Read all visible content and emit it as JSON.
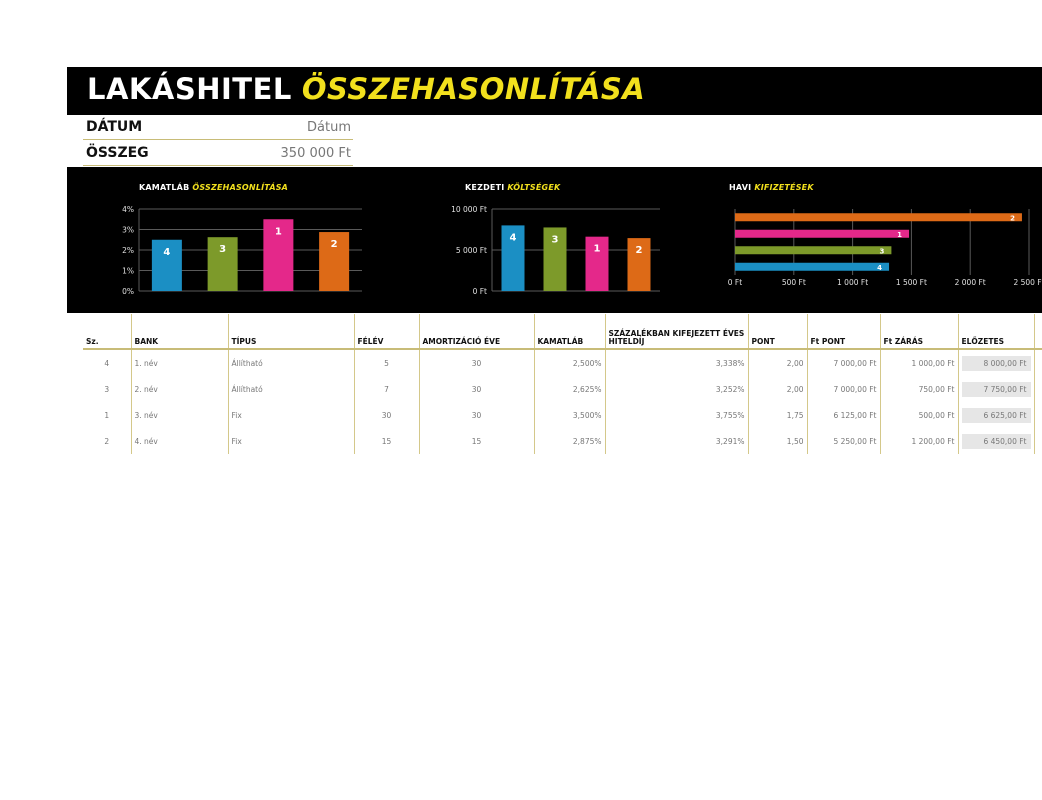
{
  "title": {
    "part1": "LAKÁSHITEL",
    "part2": "ÖSSZEHASONLÍTÁSA"
  },
  "info": {
    "date_label": "DÁTUM",
    "date_value": "Dátum",
    "amount_label": "ÖSSZEG",
    "amount_value": "350 000 Ft"
  },
  "colors": {
    "blue": "#1b8fc4",
    "green": "#7d9a2a",
    "pink": "#e4288a",
    "orange": "#dd6a17",
    "accent": "#f2e01d"
  },
  "chart_data": [
    {
      "type": "bar",
      "title_part1": "KAMATLÁB",
      "title_part2": "ÖSSZEHASONLÍTÁSA",
      "categories": [
        "4",
        "3",
        "1",
        "2"
      ],
      "values": [
        2.5,
        2.625,
        3.5,
        2.875
      ],
      "ylim": [
        0,
        4
      ],
      "ticks": [
        "4%",
        "3%",
        "2%",
        "1%",
        "0%"
      ],
      "grid": true
    },
    {
      "type": "bar",
      "title_part1": "KEZDETI",
      "title_part2": "KÖLTSÉGEK",
      "categories": [
        "4",
        "3",
        "1",
        "2"
      ],
      "values": [
        8000,
        7750,
        6625,
        6450
      ],
      "ylim": [
        0,
        10000
      ],
      "ticks": [
        "10 000 Ft",
        "5 000 Ft",
        "0 Ft"
      ],
      "grid": true
    },
    {
      "type": "bar",
      "orientation": "horizontal",
      "title_part1": "HAVI",
      "title_part2": "KIFIZETÉSEK",
      "categories": [
        "2",
        "1",
        "3",
        "4"
      ],
      "values": [
        2440,
        1480,
        1330,
        1310
      ],
      "xlim": [
        0,
        2500
      ],
      "ticks": [
        "0 Ft",
        "500 Ft",
        "1 000 Ft",
        "1 500 Ft",
        "2 000 Ft",
        "2 500 Ft"
      ],
      "grid": true
    }
  ],
  "table": {
    "headers": [
      "Sz.",
      "BANK",
      "TÍPUS",
      "FÉLÉV",
      "AMORTIZÁCIÓ ÉVE",
      "KAMATLÁB",
      "SZÁZALÉKBAN KIFEJEZETT ÉVES HITELDÍJ",
      "PONT",
      "Ft PONT",
      "Ft ZÁRÁS",
      "ELŐZETES"
    ],
    "rows": [
      [
        "4",
        "1. név",
        "Állítható",
        "5",
        "30",
        "2,500%",
        "3,338%",
        "2,00",
        "7 000,00 Ft",
        "1 000,00 Ft",
        "8 000,00 Ft"
      ],
      [
        "3",
        "2. név",
        "Állítható",
        "7",
        "30",
        "2,625%",
        "3,252%",
        "2,00",
        "7 000,00 Ft",
        "750,00 Ft",
        "7 750,00 Ft"
      ],
      [
        "1",
        "3. név",
        "Fix",
        "30",
        "30",
        "3,500%",
        "3,755%",
        "1,75",
        "6 125,00 Ft",
        "500,00 Ft",
        "6 625,00 Ft"
      ],
      [
        "2",
        "4. név",
        "Fix",
        "15",
        "15",
        "2,875%",
        "3,291%",
        "1,50",
        "5 250,00 Ft",
        "1 200,00 Ft",
        "6 450,00 Ft"
      ]
    ]
  }
}
